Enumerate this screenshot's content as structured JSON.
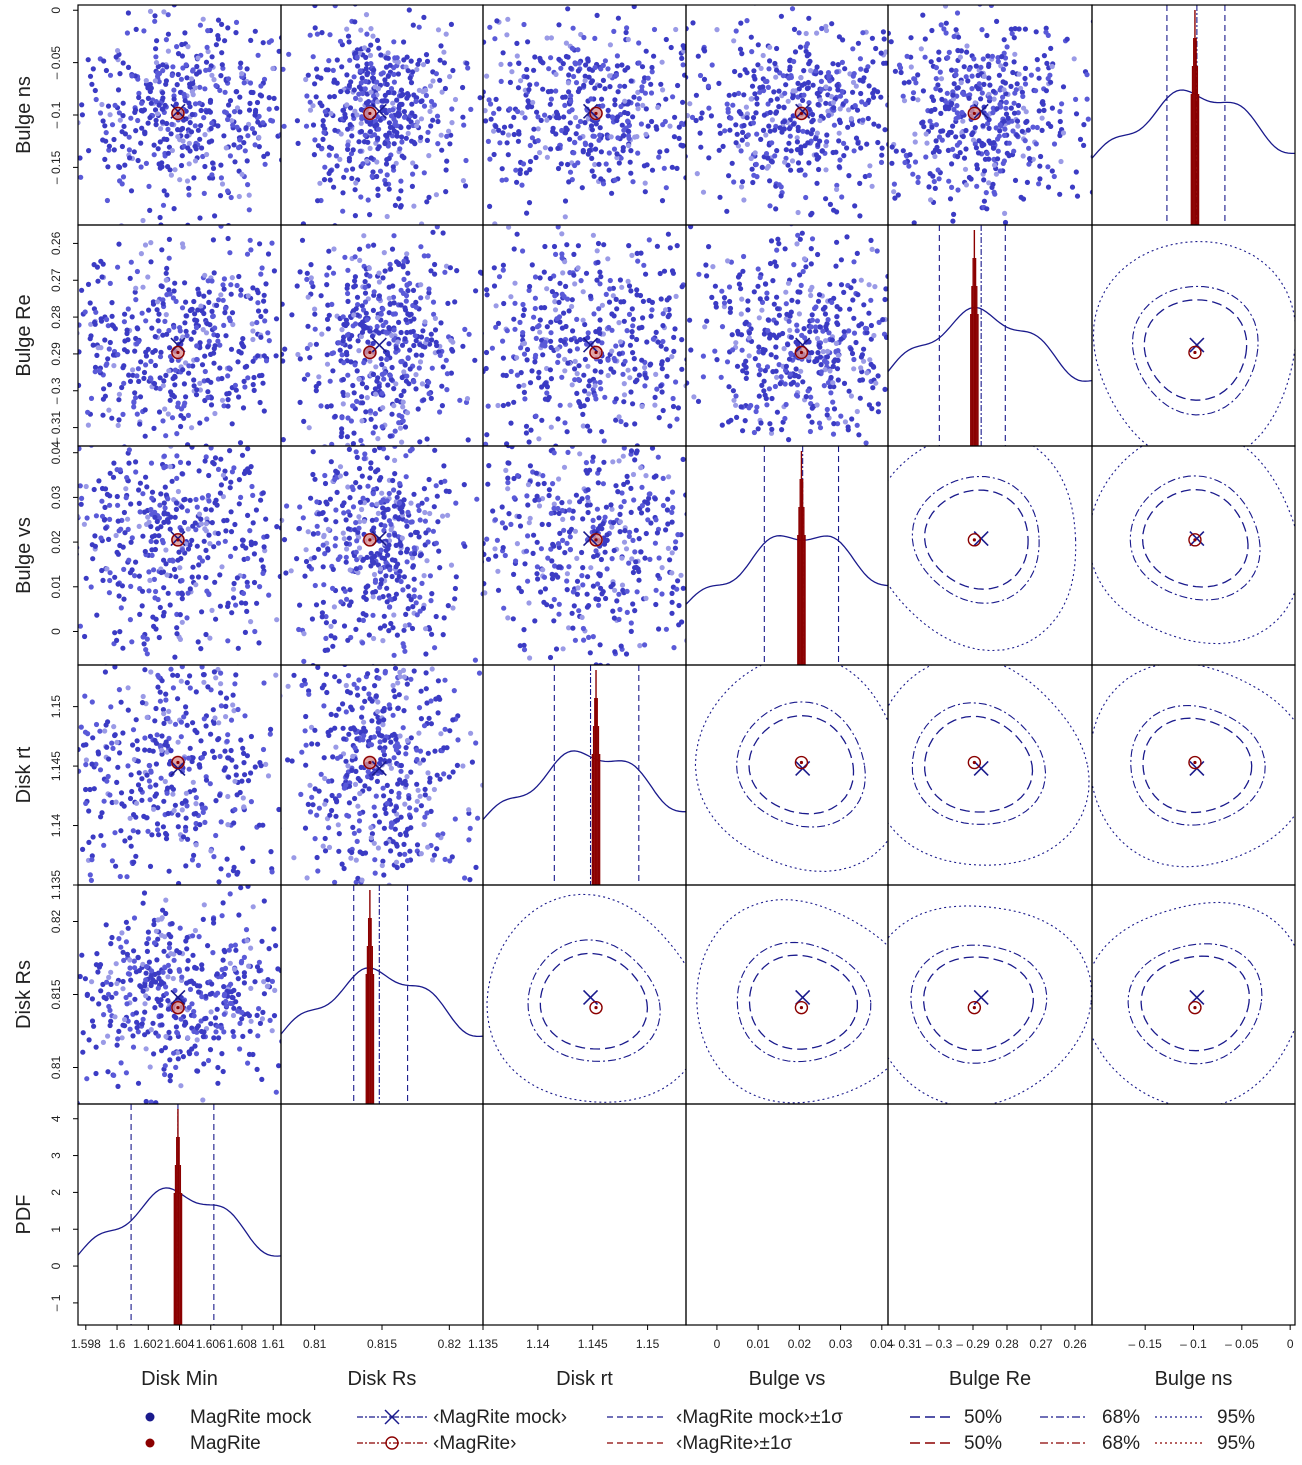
{
  "chart_data": {
    "type": "scatter",
    "variables": [
      "Disk Min",
      "Disk Rs",
      "Disk rt",
      "Bulge vs",
      "Bulge Re",
      "Bulge ns"
    ],
    "column_labels": [
      "Disk Min",
      "Disk Rs",
      "Disk rt",
      "Bulge vs",
      "Bulge Re",
      "Bulge ns"
    ],
    "row_labels": [
      "Bulge ns",
      "Bulge Re",
      "Bulge vs",
      "Disk rt",
      "Disk Rs",
      "PDF"
    ],
    "ranges": {
      "Disk Min": [
        1.5975,
        1.6105
      ],
      "Disk Rs": [
        0.8075,
        0.8225
      ],
      "Disk rt": [
        1.135,
        1.1535
      ],
      "Bulge vs": [
        -0.0075,
        0.0415
      ],
      "Bulge Re": [
        0.315,
        0.255
      ],
      "Bulge ns": [
        -0.205,
        0.005
      ],
      "PDF": [
        -1.6,
        4.4
      ]
    },
    "x_ticks": {
      "Disk Min": [
        1.598,
        1.6,
        1.602,
        1.604,
        1.606,
        1.608,
        1.61
      ],
      "Disk Rs": [
        0.81,
        0.815,
        0.82
      ],
      "Disk rt": [
        1.135,
        1.14,
        1.145,
        1.15
      ],
      "Bulge vs": [
        0,
        0.01,
        0.02,
        0.03,
        0.04
      ],
      "Bulge Re": [
        0.31,
        0.3,
        0.29,
        0.28,
        0.27,
        0.26
      ],
      "Bulge ns": [
        -0.15,
        -0.1,
        -0.05,
        0
      ]
    },
    "x_tick_labels": {
      "Disk Min": [
        "1.598",
        "1.6",
        "1.602",
        "1.604",
        "1.606",
        "1.608",
        "1.61"
      ],
      "Disk Rs": [
        "0.81",
        "0.815",
        "0.82"
      ],
      "Disk rt": [
        "1.135",
        "1.14",
        "1.145",
        "1.15"
      ],
      "Bulge vs": [
        "0",
        "0.01",
        "0.02",
        "0.03",
        "0.04"
      ],
      "Bulge Re": [
        "– 0.31",
        "– 0.3",
        "– 0.29",
        "0.28",
        "0.27",
        "0.26"
      ],
      "Bulge ns": [
        "– 0.15",
        "– 0.1",
        "– 0.05",
        "0"
      ]
    },
    "y_ticks": {
      "Bulge ns": [
        0,
        -0.05,
        -0.1,
        -0.15
      ],
      "Bulge Re": [
        0.26,
        0.27,
        0.28,
        0.29,
        0.3,
        0.31
      ],
      "Bulge vs": [
        0.04,
        0.03,
        0.02,
        0.01,
        0
      ],
      "Disk rt": [
        1.15,
        1.145,
        1.14,
        1.135
      ],
      "Disk Rs": [
        0.82,
        0.815,
        0.81
      ],
      "PDF": [
        4,
        3,
        2,
        1,
        0,
        -1
      ]
    },
    "y_tick_labels": {
      "Bulge ns": [
        "0",
        "– 0.05",
        "– 0.1",
        "– 0.15"
      ],
      "Bulge Re": [
        "0.26",
        "0.27",
        "0.28",
        "0.29",
        "– 0.3",
        "– 0.31"
      ],
      "Bulge vs": [
        "0.04",
        "0.03",
        "0.02",
        "0.01",
        "0"
      ],
      "Disk rt": [
        "1.15",
        "1.145",
        "1.14",
        "1.135"
      ],
      "Disk Rs": [
        "0.82",
        "0.815",
        "0.81"
      ],
      "PDF": [
        "4",
        "3",
        "2",
        "1",
        "0",
        "– 1"
      ]
    },
    "mean_mock": {
      "Disk Min": 1.6039,
      "Disk Rs": 0.8148,
      "Disk rt": 1.1448,
      "Bulge vs": 0.0208,
      "Bulge Re": 0.2876,
      "Bulge ns": -0.0965
    },
    "mean_magrite": {
      "Disk Min": 1.6039,
      "Disk Rs": 0.8141,
      "Disk rt": 1.1453,
      "Bulge vs": 0.0205,
      "Bulge Re": 0.2896,
      "Bulge ns": -0.0985
    },
    "sigma_mock": {
      "Disk Min": [
        1.6009,
        1.6062
      ],
      "Disk Rs": [
        0.8129,
        0.8169
      ],
      "Disk rt": [
        1.1415,
        1.1492
      ],
      "Bulge vs": [
        0.0115,
        0.0295
      ],
      "Bulge Re": [
        0.2999,
        0.2805
      ],
      "Bulge ns": [
        -0.1275,
        -0.0675
      ]
    },
    "series": [
      {
        "name": "MagRite mock",
        "color": "#1a1a8c"
      },
      {
        "name": "MagRite",
        "color": "#8b0000"
      }
    ],
    "mock_color": "#1a1a8c",
    "magrite_color": "#8b0000",
    "legend": {
      "rows": [
        [
          "MagRite mock",
          "‹MagRite mock›",
          "‹MagRite mock›±1σ",
          "50%",
          "68%",
          "95%"
        ],
        [
          "MagRite",
          "‹MagRite›",
          "‹MagRite›±1σ",
          "50%",
          "68%",
          "95%"
        ]
      ],
      "placement": "bottom"
    }
  }
}
